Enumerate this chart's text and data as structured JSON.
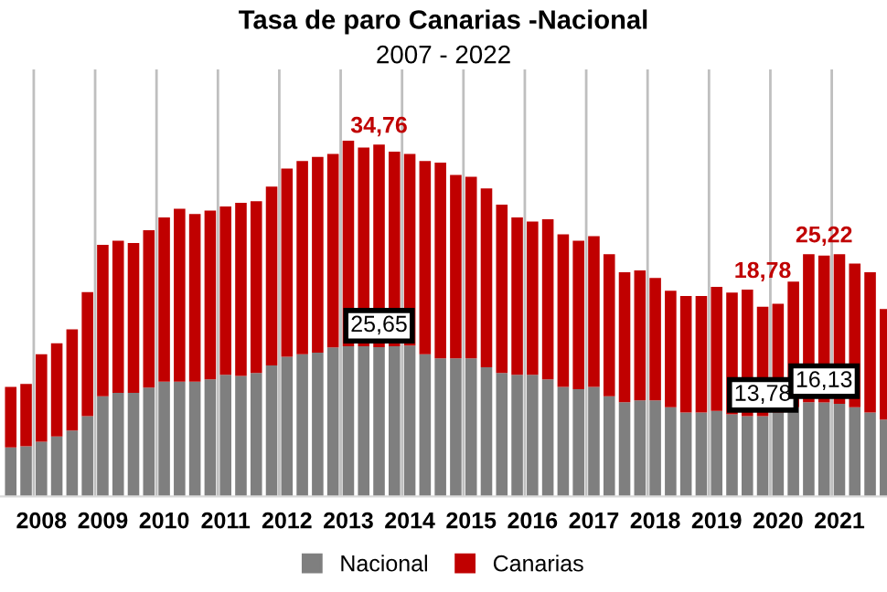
{
  "chart_data": {
    "type": "bar",
    "stacked": true,
    "title": "Tasa de paro Canarias -Nacional",
    "subtitle": "2007 - 2022",
    "categories": [
      null,
      null,
      "2008",
      null,
      null,
      null,
      "2009",
      null,
      null,
      null,
      "2010",
      null,
      null,
      null,
      "2011",
      null,
      null,
      null,
      "2012",
      null,
      null,
      null,
      "2013",
      null,
      null,
      null,
      "2014",
      null,
      null,
      null,
      "2015",
      null,
      null,
      null,
      "2016",
      null,
      null,
      null,
      "2017",
      null,
      null,
      null,
      "2018",
      null,
      null,
      null,
      "2019",
      null,
      null,
      null,
      "2020",
      null,
      null,
      null,
      "2021",
      null,
      null,
      null
    ],
    "series": [
      {
        "name": "Nacional",
        "color": "#7f7f7f",
        "values": [
          8.4,
          8.6,
          9.4,
          10.3,
          11.3,
          13.8,
          17.2,
          17.8,
          17.8,
          18.7,
          19.7,
          19.7,
          19.7,
          20.1,
          20.9,
          20.7,
          21.2,
          22.5,
          24.0,
          24.4,
          24.7,
          25.6,
          25.8,
          25.8,
          25.65,
          25.8,
          25.9,
          24.4,
          23.7,
          23.7,
          23.7,
          22.2,
          21.2,
          20.9,
          20.9,
          20.1,
          18.8,
          18.4,
          18.8,
          17.2,
          16.2,
          16.5,
          16.5,
          15.3,
          14.4,
          14.4,
          14.7,
          14.1,
          13.8,
          13.78,
          14.4,
          15.3,
          16.2,
          16.13,
          15.9,
          15.3,
          14.4,
          13.2
        ],
        "value_labels": [
          null,
          null,
          null,
          null,
          null,
          null,
          null,
          null,
          null,
          null,
          null,
          null,
          null,
          null,
          null,
          null,
          null,
          null,
          null,
          null,
          null,
          null,
          null,
          null,
          "25,65",
          null,
          null,
          null,
          null,
          null,
          null,
          null,
          null,
          null,
          null,
          null,
          null,
          null,
          null,
          null,
          null,
          null,
          null,
          null,
          null,
          null,
          null,
          null,
          null,
          "13,78",
          null,
          null,
          null,
          "16,13",
          null,
          null,
          null,
          null
        ]
      },
      {
        "name": "Canarias",
        "color": "#c00000",
        "values": [
          10.4,
          10.7,
          15.0,
          16.0,
          17.4,
          21.3,
          26.0,
          26.1,
          25.7,
          27.0,
          28.2,
          29.7,
          28.8,
          29.0,
          28.9,
          29.7,
          29.5,
          30.7,
          32.3,
          33.2,
          33.6,
          33.2,
          35.3,
          34.1,
          34.76,
          33.4,
          32.9,
          33.2,
          33.6,
          31.5,
          31.2,
          30.7,
          28.9,
          27.0,
          26.3,
          27.5,
          26.2,
          25.5,
          25.9,
          24.4,
          22.3,
          22.3,
          21.0,
          20.0,
          20.0,
          20.0,
          21.3,
          20.9,
          21.7,
          18.78,
          18.7,
          21.6,
          25.4,
          25.22,
          25.7,
          24.7,
          24.1,
          19.0
        ],
        "value_labels": [
          null,
          null,
          null,
          null,
          null,
          null,
          null,
          null,
          null,
          null,
          null,
          null,
          null,
          null,
          null,
          null,
          null,
          null,
          null,
          null,
          null,
          null,
          null,
          null,
          "34,76",
          null,
          null,
          null,
          null,
          null,
          null,
          null,
          null,
          null,
          null,
          null,
          null,
          null,
          null,
          null,
          null,
          null,
          null,
          null,
          null,
          null,
          null,
          null,
          null,
          "18,78",
          null,
          null,
          null,
          "25,22",
          null,
          null,
          null,
          null
        ]
      }
    ],
    "tick_labels": "x",
    "legend": "bottom",
    "grid": "x"
  }
}
